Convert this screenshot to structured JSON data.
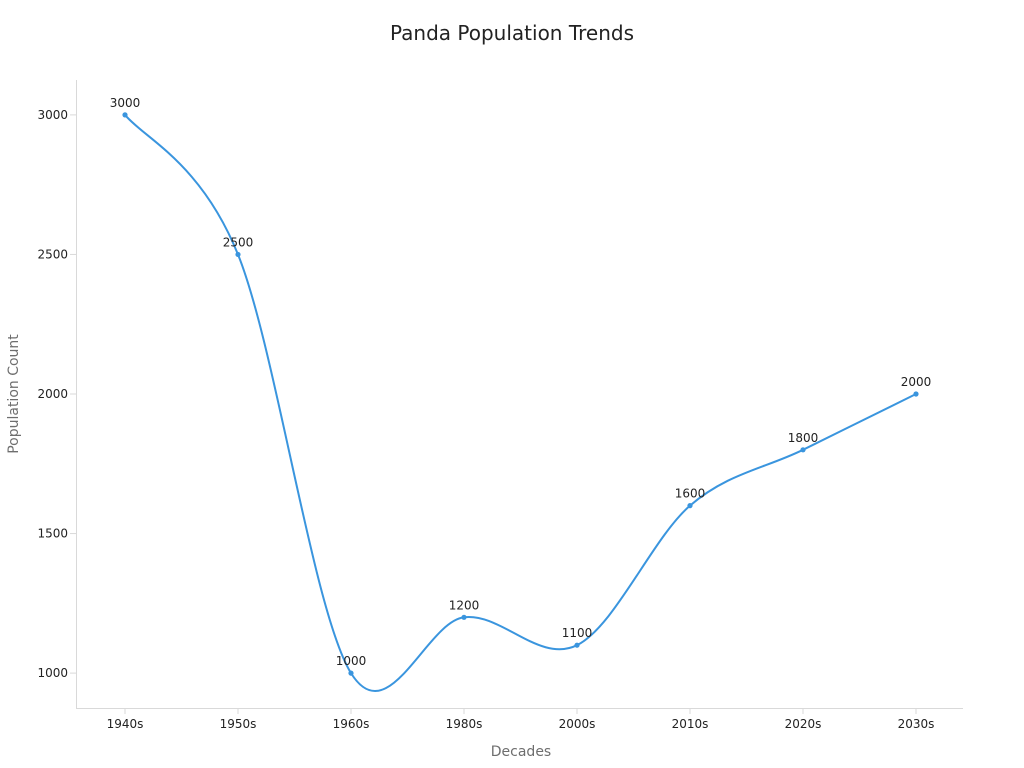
{
  "chart_data": {
    "type": "line",
    "title": "Panda Population Trends",
    "xlabel": "Decades",
    "ylabel": "Population Count",
    "categories": [
      "1940s",
      "1950s",
      "1960s",
      "1980s",
      "2000s",
      "2010s",
      "2020s",
      "2030s"
    ],
    "series": [
      {
        "values": [
          3000,
          2500,
          1000,
          1200,
          1100,
          1600,
          1800,
          2000
        ]
      }
    ],
    "ylim": [
      875,
      3125
    ],
    "yticks": [
      1000,
      1500,
      2000,
      2500,
      3000
    ],
    "grid": false,
    "legend": "none",
    "smooth": true,
    "data_labels": true
  },
  "colors": {
    "line": "#3a95de",
    "axis": "#d9d9d9",
    "text": "#222222",
    "label": "#6e6e6e"
  }
}
